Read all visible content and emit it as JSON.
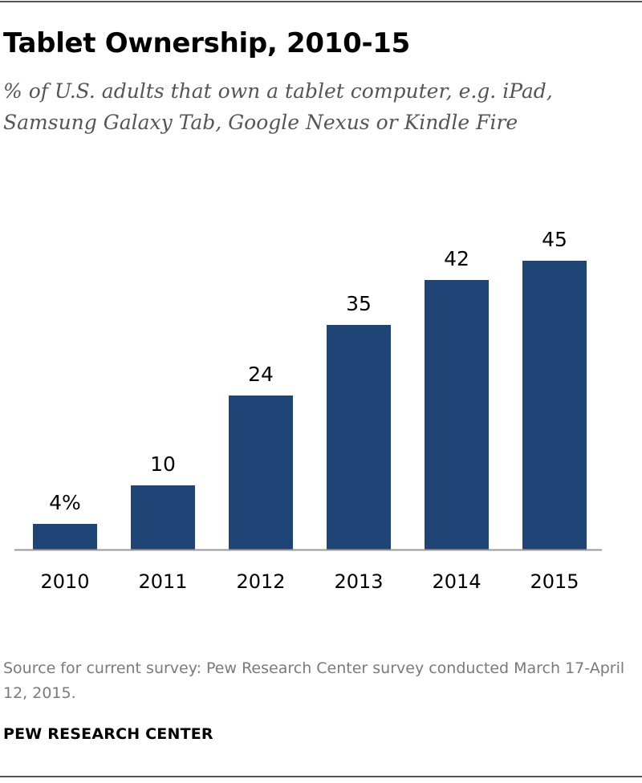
{
  "chart_data": {
    "type": "bar",
    "title": "Tablet Ownership, 2010-15",
    "subtitle": "% of U.S. adults that own a tablet computer, e.g. iPad, Samsung Galaxy Tab, Google Nexus or Kindle Fire",
    "categories": [
      "2010",
      "2011",
      "2012",
      "2013",
      "2014",
      "2015"
    ],
    "values": [
      4,
      10,
      24,
      35,
      42,
      45
    ],
    "data_labels": [
      "4%",
      "10",
      "24",
      "35",
      "42",
      "45"
    ],
    "xlabel": "",
    "ylabel": "",
    "ylim": [
      0,
      45
    ],
    "grid": false,
    "legend": "none",
    "bar_color": "#1f4577",
    "axis_color": "#999999"
  },
  "footer": {
    "source": "Source for current survey: Pew Research Center survey conducted March 17-April 12, 2015.",
    "organization": "PEW RESEARCH CENTER"
  }
}
